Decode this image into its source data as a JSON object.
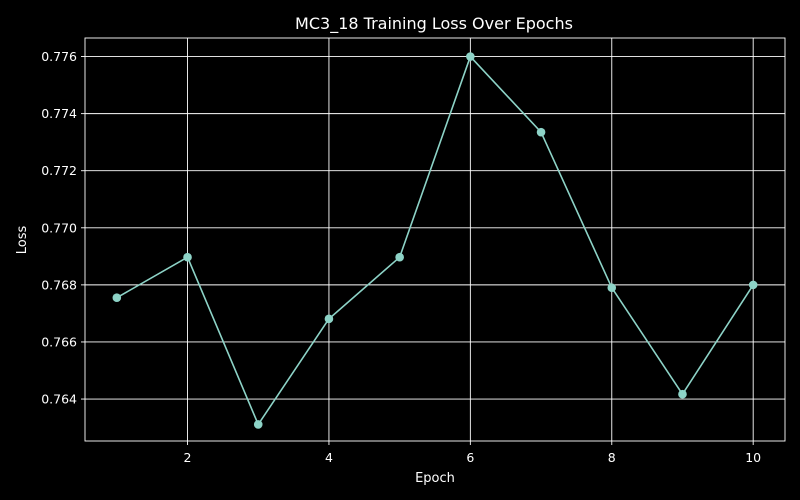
{
  "chart_data": {
    "type": "line",
    "title": "MC3_18 Training Loss Over Epochs",
    "xlabel": "Epoch",
    "ylabel": "Loss",
    "x": [
      1,
      2,
      3,
      4,
      5,
      6,
      7,
      8,
      9,
      10
    ],
    "series": [
      {
        "values": [
          0.76755,
          0.76897,
          0.76311,
          0.76681,
          0.76897,
          0.776,
          0.77335,
          0.7679,
          0.76417,
          0.768
        ]
      }
    ],
    "xlim": [
      0.55,
      10.45
    ],
    "ylim": [
      0.76253,
      0.77665
    ],
    "xticks": [
      2,
      4,
      6,
      8,
      10
    ],
    "yticks": [
      0.764,
      0.766,
      0.768,
      0.77,
      0.772,
      0.774,
      0.776
    ],
    "grid": true,
    "colors": {
      "background": "#000000",
      "line": "#8dd3c7",
      "text": "#ffffff",
      "grid": "#ffffff"
    }
  }
}
